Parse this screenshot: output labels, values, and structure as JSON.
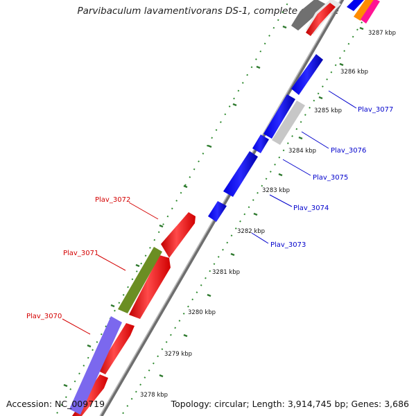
{
  "title": "Parvibaculum lavamentivorans DS-1, complete genome",
  "footer": {
    "accession": "Accession: NC_009719",
    "topology": "Topology: circular; Length: 3,914,745 bp; Genes: 3,686"
  },
  "colors": {
    "backbone": "#8a8a8a",
    "tick_green": "#2f8a2f",
    "forward_blue": "#0000ee",
    "reverse_red": "#ff0000",
    "grey_gene": "#c0c0c0",
    "olive_gene": "#6b8e23",
    "purple_gene": "#7b68ee",
    "label_blue": "#0000cc",
    "label_red": "#d40000"
  },
  "kbp_labels": [
    "3287 kbp",
    "3286 kbp",
    "3285 kbp",
    "3284 kbp",
    "3283 kbp",
    "3282 kbp",
    "3281 kbp",
    "3280 kbp",
    "3279 kbp",
    "3278 kbp"
  ],
  "gene_labels_blue": [
    "Plav_3077",
    "Plav_3076",
    "Plav_3075",
    "Plav_3074",
    "Plav_3073"
  ],
  "gene_labels_red": [
    "Plav_3072",
    "Plav_3071",
    "Plav_3070"
  ]
}
